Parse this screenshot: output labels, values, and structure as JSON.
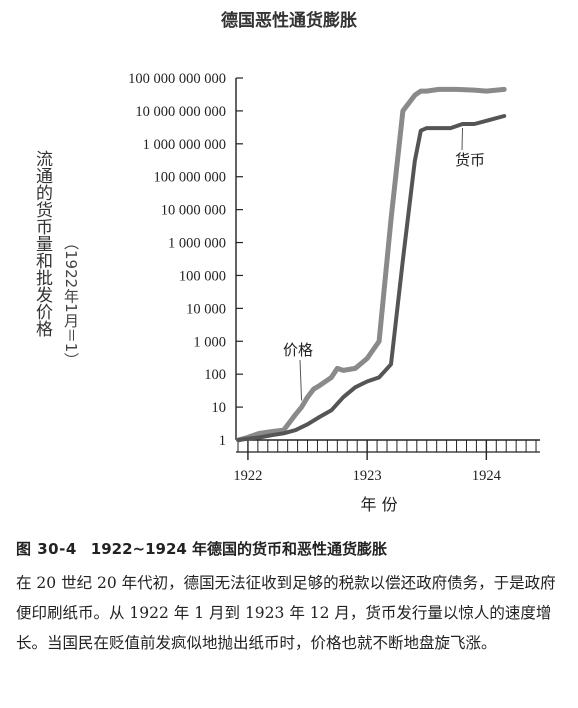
{
  "chart_data": {
    "type": "line",
    "title": "德国恶性通货膨胀",
    "xlabel": "年 份",
    "ylabel": "流通的货币量和批发价格",
    "ylabel_note": "（1922年1月＝1）",
    "yscale": "log",
    "ylim": [
      1,
      100000000000
    ],
    "xlim": [
      1921.9,
      1924.45
    ],
    "x_ticks": [
      1922,
      1923,
      1924
    ],
    "x_tick_labels": [
      "1922",
      "1923",
      "1924"
    ],
    "y_ticks": [
      1,
      10,
      100,
      1000,
      10000,
      100000,
      1000000,
      10000000,
      100000000,
      1000000000,
      10000000000,
      100000000000
    ],
    "y_tick_labels": [
      "1",
      "10",
      "100",
      "1 000",
      "10 000",
      "100 000",
      "1 000 000",
      "10 000 000",
      "100 000 000",
      "1 000 000 000",
      "10 000 000 000",
      "100 000 000 000"
    ],
    "series": [
      {
        "name": "价格",
        "color": "#8a8a8a",
        "x": [
          1921.92,
          1922.0,
          1922.05,
          1922.1,
          1922.2,
          1922.3,
          1922.4,
          1922.45,
          1922.5,
          1922.55,
          1922.6,
          1922.7,
          1922.75,
          1922.8,
          1922.9,
          1923.0,
          1923.1,
          1923.2,
          1923.3,
          1923.4,
          1923.45,
          1923.5,
          1923.6,
          1923.75,
          1923.9,
          1924.0,
          1924.15
        ],
        "y": [
          1,
          1.2,
          1.4,
          1.6,
          1.8,
          2,
          6,
          10,
          20,
          35,
          45,
          80,
          150,
          130,
          150,
          300,
          1000,
          5000000,
          10000000000,
          30000000000,
          40000000000,
          40000000000,
          45000000000,
          45000000000,
          43000000000,
          40000000000,
          45000000000
        ]
      },
      {
        "name": "货币",
        "color": "#555555",
        "x": [
          1921.92,
          1922.0,
          1922.1,
          1922.2,
          1922.3,
          1922.4,
          1922.5,
          1922.6,
          1922.7,
          1922.8,
          1922.9,
          1923.0,
          1923.1,
          1923.2,
          1923.3,
          1923.4,
          1923.45,
          1923.5,
          1923.6,
          1923.7,
          1923.8,
          1923.9,
          1924.0,
          1924.15
        ],
        "y": [
          1,
          1.1,
          1.2,
          1.4,
          1.6,
          2,
          3,
          5,
          8,
          20,
          40,
          60,
          80,
          200,
          300000,
          300000000,
          2500000000,
          3000000000,
          3000000000,
          3000000000,
          4000000000,
          4000000000,
          5000000000,
          7000000000
        ]
      }
    ]
  },
  "caption": {
    "fig_id": "图 30-4",
    "fig_title": "1922~1924 年德国的货币和恶性通货膨胀",
    "body": "在 20 世纪 20 年代初，德国无法征收到足够的税款以偿还政府债务，于是政府便印刷纸币。从 1922 年 1 月到 1923 年 12 月，货币发行量以惊人的速度增长。当国民在贬值前发疯似地抛出纸币时，价格也就不断地盘旋飞涨。"
  }
}
